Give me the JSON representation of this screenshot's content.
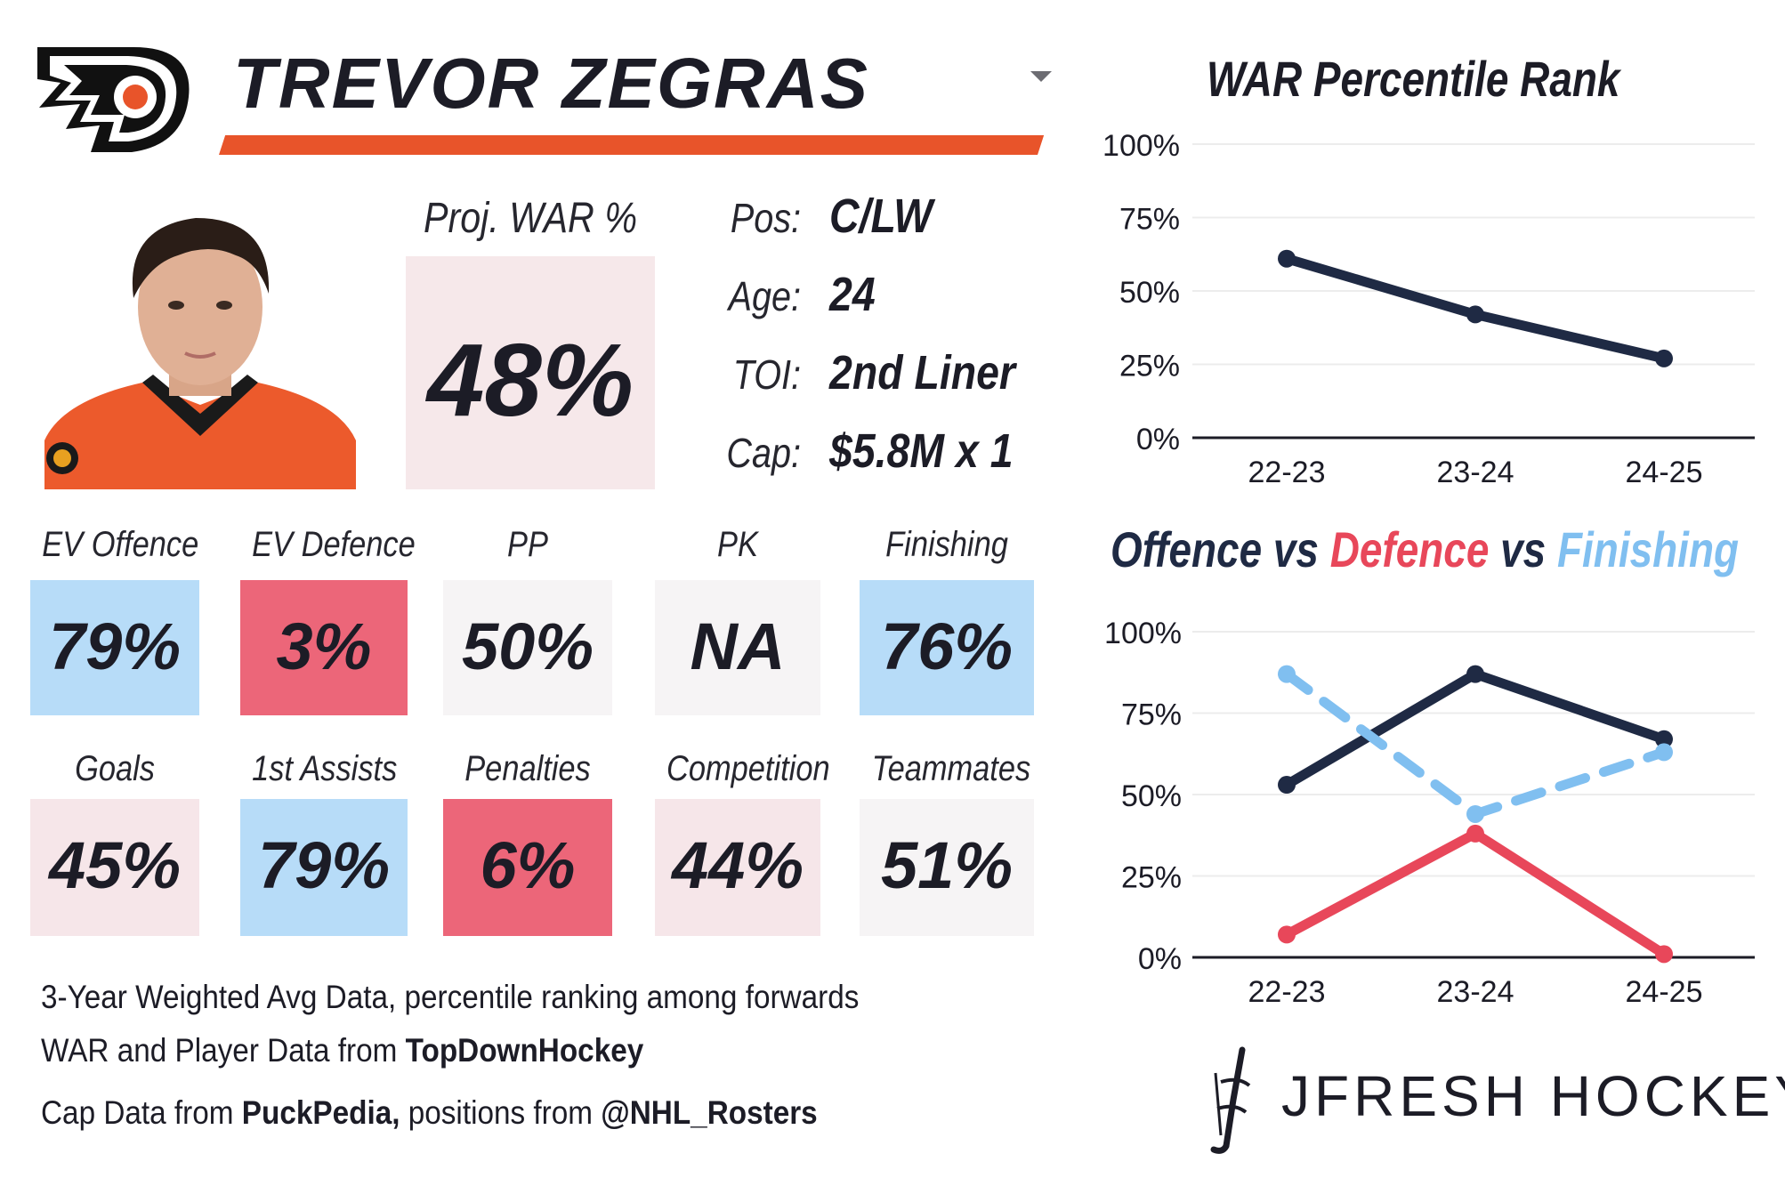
{
  "header": {
    "player_name": "TREVOR ZEGRAS",
    "team_logo_icon": "flyers-logo-icon",
    "dropdown_icon": "chevron-down-icon"
  },
  "proj_war": {
    "label": "Proj. WAR %",
    "value": "48%"
  },
  "info": [
    {
      "label": "Pos:",
      "value": "C/LW"
    },
    {
      "label": "Age:",
      "value": "24"
    },
    {
      "label": "TOI:",
      "value": "2nd Liner"
    },
    {
      "label": "Cap:",
      "value": "$5.8M x 1"
    }
  ],
  "stats_row1": [
    {
      "label": "EV Offence",
      "value": "79%",
      "color": "#b7dcf8"
    },
    {
      "label": "EV Defence",
      "value": "3%",
      "color": "#ec6679"
    },
    {
      "label": "PP",
      "value": "50%",
      "color": "#f6f4f5"
    },
    {
      "label": "PK",
      "value": "NA",
      "color": "#f6f4f5"
    },
    {
      "label": "Finishing",
      "value": "76%",
      "color": "#b7dcf8"
    }
  ],
  "stats_row2": [
    {
      "label": "Goals",
      "value": "45%",
      "color": "#f6e6e9"
    },
    {
      "label": "1st Assists",
      "value": "79%",
      "color": "#b7dcf8"
    },
    {
      "label": "Penalties",
      "value": "6%",
      "color": "#ec6679"
    },
    {
      "label": "Competition",
      "value": "44%",
      "color": "#f6e6e9"
    },
    {
      "label": "Teammates",
      "value": "51%",
      "color": "#f6f4f5"
    }
  ],
  "footer": {
    "line1": "3-Year Weighted Avg Data, percentile ranking among forwards",
    "line2_prefix": "WAR and Player Data from ",
    "line2_source": "TopDownHockey",
    "line3_prefix": "Cap Data from ",
    "line3_source": "PuckPedia,",
    "line3_middle": " positions from ",
    "line3_source2": "@NHL_Rosters"
  },
  "brand": {
    "name": "JFRESH HOCKEY",
    "icon": "jfresh-logo-icon"
  },
  "chart_data": [
    {
      "type": "line",
      "title": "WAR Percentile Rank",
      "categories": [
        "22-23",
        "23-24",
        "24-25"
      ],
      "yticks": [
        "0%",
        "25%",
        "50%",
        "75%",
        "100%"
      ],
      "ylim": [
        0,
        100
      ],
      "grid": true,
      "series": [
        {
          "values": [
            61,
            42,
            27
          ],
          "color": "#1f2a44",
          "dashed": false
        }
      ]
    },
    {
      "type": "line",
      "title_parts": [
        {
          "text": "Offence",
          "color": "#1f2a44"
        },
        {
          "text": " vs ",
          "color": "#1f2a44"
        },
        {
          "text": "Defence",
          "color": "#e8475a"
        },
        {
          "text": " vs ",
          "color": "#1f2a44"
        },
        {
          "text": "Finishing",
          "color": "#80bff0"
        }
      ],
      "categories": [
        "22-23",
        "23-24",
        "24-25"
      ],
      "yticks": [
        "0%",
        "25%",
        "50%",
        "75%",
        "100%"
      ],
      "ylim": [
        0,
        100
      ],
      "grid": true,
      "series": [
        {
          "name": "Offence",
          "values": [
            53,
            87,
            67
          ],
          "color": "#1f2a44",
          "dashed": false
        },
        {
          "name": "Defence",
          "values": [
            7,
            38,
            1
          ],
          "color": "#e8475a",
          "dashed": false
        },
        {
          "name": "Finishing",
          "values": [
            87,
            44,
            63
          ],
          "color": "#80bff0",
          "dashed": true
        }
      ]
    }
  ]
}
